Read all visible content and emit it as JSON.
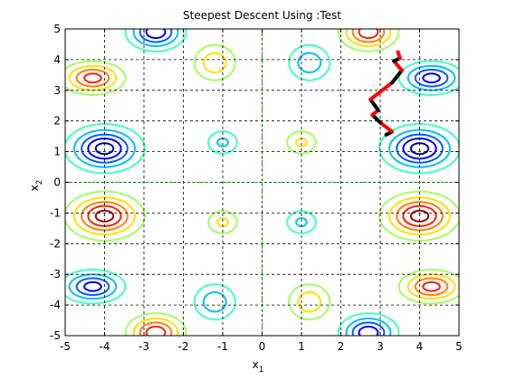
{
  "chart_data": {
    "type": "contour",
    "title": "Steepest Descent Using :Test",
    "xlabel": {
      "base": "x",
      "sub": "1"
    },
    "ylabel": {
      "base": "x",
      "sub": "2"
    },
    "xlim": [
      -5,
      5
    ],
    "ylim": [
      -5,
      5
    ],
    "xticks": [
      -5,
      -4,
      -3,
      -2,
      -1,
      0,
      1,
      2,
      3,
      4,
      5
    ],
    "yticks": [
      -5,
      -4,
      -3,
      -2,
      -1,
      0,
      1,
      2,
      3,
      4,
      5
    ],
    "xtick_labels": [
      "-5",
      "-4",
      "-3",
      "-2",
      "-1",
      "0",
      "1",
      "2",
      "3",
      "4",
      "5"
    ],
    "ytick_labels": [
      "-5",
      "-4",
      "-3",
      "-2",
      "-1",
      "0",
      "1",
      "2",
      "3",
      "4",
      "5"
    ],
    "grid": "dashed-black",
    "axes_lines": {
      "x0": true,
      "y0": true,
      "color": "#00aa00"
    },
    "contour_colors": [
      "#00008f",
      "#0000ff",
      "#0060ff",
      "#00c0ff",
      "#40ffc0",
      "#a0ff60",
      "#ffe000",
      "#ff8000",
      "#ff2000",
      "#a00000"
    ],
    "path": {
      "colors": [
        "#000000",
        "#ff0000"
      ],
      "points": [
        [
          3.15,
          1.55
        ],
        [
          3.3,
          1.65
        ],
        [
          3.0,
          1.95
        ],
        [
          2.8,
          2.2
        ],
        [
          2.95,
          2.35
        ],
        [
          2.75,
          2.7
        ],
        [
          3.3,
          3.25
        ],
        [
          3.55,
          3.65
        ],
        [
          3.35,
          3.95
        ],
        [
          3.5,
          4.05
        ],
        [
          3.45,
          4.25
        ]
      ]
    }
  }
}
